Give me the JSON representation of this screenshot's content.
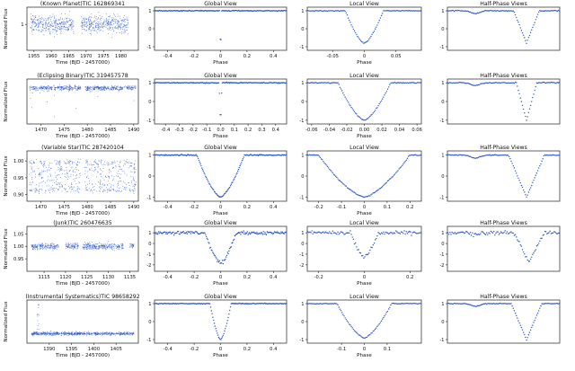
{
  "figure": {
    "rows": [
      {
        "label": "(Known Planet)TIC 162869341",
        "time_xlabel": "Time (BJD - 2457000)"
      },
      {
        "label": "(Eclipsing Binary)TIC 319457578",
        "time_xlabel": "Time (BJD - 2457000)"
      },
      {
        "label": "(Variable Star)TIC 287420104",
        "time_xlabel": "Time (BJD - 2457000)"
      },
      {
        "label": "(Junk)TIC 260476635",
        "time_xlabel": "Time (BJD - 2457000)"
      },
      {
        "label": "(Instrumental Systematics)TIC 98658292",
        "time_xlabel": "Time (BJD - 2457000)"
      }
    ],
    "view_titles": [
      "Global View",
      "Local View",
      "Half-Phase Views"
    ],
    "phase_xlabel": "Phase",
    "flux_ylabel": "Normalized Flux",
    "accent_color": "#2b55c8"
  },
  "chart_data": [
    {
      "type": "scatter",
      "panel": "light-curve",
      "row": "(Known Planet)TIC 162869341",
      "xlabel": "Time (BJD - 2457000)",
      "ylabel": "Normalized Flux",
      "xlim": [
        1953,
        1985
      ],
      "ylim": [
        0.985,
        1.01
      ],
      "xticks": [
        1955,
        1960,
        1965,
        1970,
        1975,
        1980
      ],
      "yticks": [
        1.0
      ],
      "segments": [
        [
          1954.0,
          1966.5
        ],
        [
          1968.5,
          1982.0
        ]
      ],
      "baseline": 1.0,
      "scatter": 0.004,
      "transit_depth": 0.0,
      "gap_note": "data gap between segments"
    },
    {
      "type": "scatter",
      "panel": "global-view",
      "row": "(Known Planet)TIC 162869341",
      "xlabel": "Phase",
      "xlim": [
        -0.5,
        0.5
      ],
      "ylim": [
        -1.2,
        1.2
      ],
      "xticks": [
        -0.4,
        -0.2,
        0.0,
        0.2,
        0.4
      ],
      "yticks": [
        1,
        0,
        -1
      ],
      "dip": {
        "center": 0.0,
        "half_width": 0.008,
        "depth": -1.0
      }
    },
    {
      "type": "scatter",
      "panel": "local-view",
      "row": "(Known Planet)TIC 162869341",
      "xlabel": "Phase",
      "xlim": [
        -0.09,
        0.09
      ],
      "ylim": [
        -1.2,
        1.2
      ],
      "xticks": [
        -0.05,
        0.0,
        0.05
      ],
      "yticks": [
        1,
        0,
        -1
      ],
      "dip": {
        "center": 0.0,
        "half_width": 0.03,
        "depth": -0.8
      }
    },
    {
      "type": "scatter",
      "panel": "half-phase-views",
      "row": "(Known Planet)TIC 162869341",
      "xlim": [
        -1.1,
        1.1
      ],
      "ylim": [
        -1.2,
        1.2
      ],
      "yticks": [
        1,
        0,
        -1
      ],
      "dip": {
        "center": 0.45,
        "half_width": 0.25,
        "depth": -0.8
      }
    },
    {
      "type": "scatter",
      "panel": "light-curve",
      "row": "(Eclipsing Binary)TIC 319457578",
      "xlabel": "Time (BJD - 2457000)",
      "ylabel": "Normalized Flux",
      "xlim": [
        1467,
        1491
      ],
      "ylim": [
        0.88,
        1.03
      ],
      "xticks": [
        1470,
        1475,
        1480,
        1485,
        1490
      ],
      "segments": [
        [
          1467.5,
          1478.5
        ],
        [
          1479.5,
          1490.5
        ]
      ],
      "baseline": 1.0,
      "scatter": 0.006,
      "eclipse_period": 1.56,
      "eclipse_depth": -0.1
    },
    {
      "type": "scatter",
      "panel": "global-view",
      "row": "(Eclipsing Binary)TIC 319457578",
      "xlabel": "Phase",
      "xlim": [
        -0.48,
        0.48
      ],
      "ylim": [
        -1.2,
        1.2
      ],
      "xticks": [
        -0.4,
        -0.3,
        -0.2,
        -0.1,
        0.0,
        0.1,
        0.2,
        0.3,
        0.4
      ],
      "xticklabels": [
        "-0.4",
        "-0.3",
        "-0.2",
        "-0.1",
        "0.0",
        "0.1",
        "0.2",
        "0.3",
        "0.4"
      ],
      "yticks": [
        1,
        0,
        -1
      ],
      "dip": {
        "center": 0.0,
        "half_width": 0.01,
        "depth": -1.0
      }
    },
    {
      "type": "scatter",
      "panel": "local-view",
      "row": "(Eclipsing Binary)TIC 319457578",
      "xlabel": "Phase",
      "xlim": [
        -0.065,
        0.065
      ],
      "ylim": [
        -1.2,
        1.2
      ],
      "xticks": [
        -0.06,
        -0.04,
        -0.02,
        0.0,
        0.02,
        0.04,
        0.06
      ],
      "xticklabels": [
        "-0.06",
        "-0.04",
        "-0.02",
        "0.00",
        "0.02",
        "0.04",
        "0.06"
      ],
      "yticks": [
        1,
        0,
        -1
      ],
      "dip": {
        "center": 0.0,
        "half_width": 0.03,
        "depth": -1.0
      }
    },
    {
      "type": "scatter",
      "panel": "half-phase-views",
      "row": "(Eclipsing Binary)TIC 319457578",
      "xlim": [
        -1.1,
        1.1
      ],
      "ylim": [
        -1.2,
        1.2
      ],
      "yticks": [
        1,
        0,
        -1
      ],
      "dip": {
        "center": 0.45,
        "half_width": 0.2,
        "depth": -1.0
      }
    },
    {
      "type": "scatter",
      "panel": "light-curve",
      "row": "(Variable Star)TIC 287420104",
      "xlabel": "Time (BJD - 2457000)",
      "ylabel": "Normalized Flux",
      "xlim": [
        1467,
        1491
      ],
      "ylim": [
        0.88,
        1.03
      ],
      "xticks": [
        1470,
        1475,
        1480,
        1485,
        1490
      ],
      "yticks": [
        1.0,
        0.95,
        0.9
      ],
      "yticklabels": [
        "1.00",
        "0.95",
        "0.90"
      ],
      "segments": [
        [
          1467.5,
          1478.5
        ],
        [
          1479.5,
          1490.5
        ]
      ],
      "baseline": 0.955,
      "amplitude": 0.05,
      "variability": "rapid"
    },
    {
      "type": "scatter",
      "panel": "global-view",
      "row": "(Variable Star)TIC 287420104",
      "xlabel": "Phase",
      "xlim": [
        -0.5,
        0.5
      ],
      "ylim": [
        -1.2,
        1.2
      ],
      "xticks": [
        -0.4,
        -0.2,
        0.0,
        0.2,
        0.4
      ],
      "yticks": [
        1,
        0,
        -1
      ],
      "dip": {
        "center": 0.0,
        "half_width": 0.18,
        "depth": -1.0
      }
    },
    {
      "type": "scatter",
      "panel": "local-view",
      "row": "(Variable Star)TIC 287420104",
      "xlabel": "Phase",
      "xlim": [
        -0.25,
        0.25
      ],
      "ylim": [
        -1.2,
        1.2
      ],
      "xticks": [
        -0.2,
        -0.1,
        0.0,
        0.1,
        0.2
      ],
      "yticks": [
        1,
        0,
        -1
      ],
      "dip": {
        "center": 0.0,
        "half_width": 0.2,
        "depth": -1.0
      }
    },
    {
      "type": "scatter",
      "panel": "half-phase-views",
      "row": "(Variable Star)TIC 287420104",
      "xlim": [
        -1.1,
        1.1
      ],
      "ylim": [
        -1.2,
        1.2
      ],
      "yticks": [
        1,
        0,
        -1
      ],
      "dip": {
        "center": 0.45,
        "half_width": 0.35,
        "depth": -1.0
      }
    },
    {
      "type": "scatter",
      "panel": "light-curve",
      "row": "(Junk)TIC 260476635",
      "xlabel": "Time (BJD - 2457000)",
      "ylabel": "Normalized Flux",
      "xlim": [
        1111,
        1137
      ],
      "ylim": [
        0.9,
        1.08
      ],
      "xticks": [
        1115,
        1120,
        1125,
        1130,
        1135
      ],
      "yticks": [
        1.05,
        1.0,
        0.95
      ],
      "yticklabels": [
        "1.05",
        "1.00",
        "0.95"
      ],
      "segments": [
        [
          1112,
          1118.5
        ],
        [
          1120,
          1123
        ],
        [
          1124,
          1133.5
        ],
        [
          1135,
          1136
        ]
      ],
      "baseline": 1.0,
      "scatter": 0.01
    },
    {
      "type": "scatter",
      "panel": "global-view",
      "row": "(Junk)TIC 260476635",
      "xlabel": "Phase",
      "xlim": [
        -0.5,
        0.5
      ],
      "ylim": [
        -2.6,
        1.6
      ],
      "xticks": [
        -0.4,
        -0.2,
        0.0,
        0.2,
        0.4
      ],
      "yticks": [
        1,
        0,
        -1,
        -2
      ],
      "dip": {
        "center": 0.0,
        "half_width": 0.12,
        "depth": -1.8
      }
    },
    {
      "type": "scatter",
      "panel": "local-view",
      "row": "(Junk)TIC 260476635",
      "xlabel": "Phase",
      "xlim": [
        -0.25,
        0.25
      ],
      "ylim": [
        -2.6,
        1.6
      ],
      "xticks": [
        -0.2,
        0.0,
        0.2
      ],
      "yticks": [
        1,
        0,
        -1,
        -2
      ],
      "dip": {
        "center": 0.0,
        "half_width": 0.06,
        "depth": -1.3
      }
    },
    {
      "type": "scatter",
      "panel": "half-phase-views",
      "row": "(Junk)TIC 260476635",
      "xlim": [
        -1.1,
        1.1
      ],
      "ylim": [
        -2.6,
        1.6
      ],
      "yticks": [
        1,
        0,
        -1,
        -2
      ],
      "dip": {
        "center": 0.5,
        "half_width": 0.3,
        "depth": -1.7
      }
    },
    {
      "type": "scatter",
      "panel": "light-curve",
      "row": "(Instrumental Systematics)TIC 98658292",
      "xlabel": "Time (BJD - 2457000)",
      "ylabel": "Normalized Flux",
      "xlim": [
        1385,
        1410
      ],
      "ylim": [
        0.985,
        1.012
      ],
      "xticks": [
        1390,
        1395,
        1400,
        1405
      ],
      "segments": [
        [
          1386,
          1409
        ]
      ],
      "baseline": 0.991,
      "scatter": 0.0008,
      "spike": {
        "time": 1387.5,
        "height": 1.011
      }
    },
    {
      "type": "scatter",
      "panel": "global-view",
      "row": "(Instrumental Systematics)TIC 98658292",
      "xlabel": "Phase",
      "xlim": [
        -0.5,
        0.5
      ],
      "ylim": [
        -1.2,
        1.2
      ],
      "xticks": [
        -0.4,
        -0.2,
        0.0,
        0.2,
        0.4
      ],
      "yticks": [
        1,
        0,
        -1
      ],
      "dip": {
        "center": 0.0,
        "half_width": 0.08,
        "depth": -1.0
      }
    },
    {
      "type": "scatter",
      "panel": "local-view",
      "row": "(Instrumental Systematics)TIC 98658292",
      "xlabel": "Phase",
      "xlim": [
        -0.25,
        0.25
      ],
      "ylim": [
        -1.2,
        1.2
      ],
      "xticks": [
        -0.1,
        0.0,
        0.1
      ],
      "yticks": [
        1,
        0,
        -1
      ],
      "dip": {
        "center": 0.0,
        "half_width": 0.12,
        "depth": -0.9
      }
    },
    {
      "type": "scatter",
      "panel": "half-phase-views",
      "row": "(Instrumental Systematics)TIC 98658292",
      "xlim": [
        -1.1,
        1.1
      ],
      "ylim": [
        -1.2,
        1.2
      ],
      "yticks": [
        1,
        0,
        -1
      ],
      "dip": {
        "center": 0.45,
        "half_width": 0.3,
        "depth": -1.0
      }
    }
  ]
}
